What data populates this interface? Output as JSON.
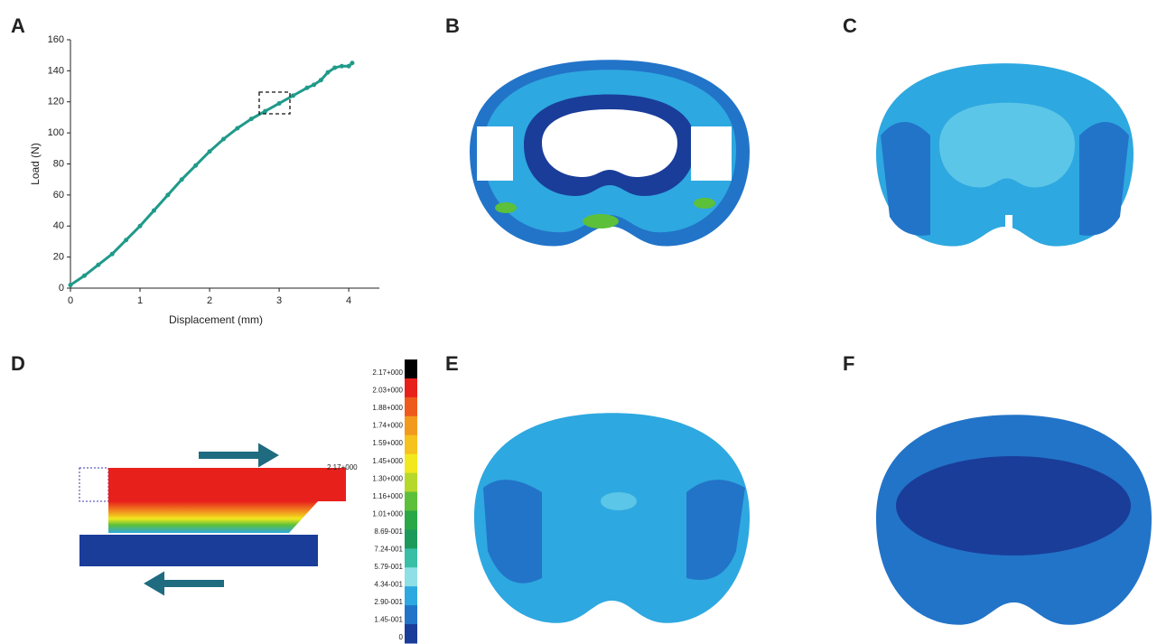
{
  "panel_labels": [
    "A",
    "B",
    "C",
    "D",
    "E",
    "F"
  ],
  "chart_data": {
    "type": "line",
    "x_label": "Displacement (mm)",
    "y_label": "Load (N)",
    "x": [
      0,
      0.2,
      0.4,
      0.6,
      0.8,
      1.0,
      1.2,
      1.4,
      1.6,
      1.8,
      2.0,
      2.2,
      2.4,
      2.6,
      2.8,
      3.0,
      3.2,
      3.4,
      3.5,
      3.6,
      3.7,
      3.8,
      3.9,
      4.0,
      4.05
    ],
    "series": [
      {
        "color": "#1f9a8a",
        "values": [
          2,
          8,
          15,
          22,
          31,
          40,
          50,
          60,
          70,
          79,
          88,
          96,
          103,
          109,
          114,
          119,
          124,
          129,
          131,
          134,
          139,
          142,
          143,
          143,
          145
        ]
      }
    ],
    "xlim": [
      0,
      4.44
    ],
    "ylim": [
      0,
      160
    ],
    "xticks": [
      0,
      1,
      2,
      3,
      4
    ],
    "yticks": [
      0,
      20,
      40,
      60,
      80,
      100,
      120,
      140,
      160
    ]
  },
  "colorbar": {
    "labels": [
      "2.17+000",
      "2.03+000",
      "1.88+000",
      "1.74+000",
      "1.59+000",
      "1.45+000",
      "1.30+000",
      "1.16+000",
      "1.01+000",
      "8.69-001",
      "7.24-001",
      "5.79-001",
      "4.34-001",
      "2.90-001",
      "1.45-001",
      "0"
    ],
    "colors": [
      "#000000",
      "#e8201c",
      "#ee5a1c",
      "#f29a1e",
      "#f6c21e",
      "#f2e81e",
      "#b6d82a",
      "#5cc03a",
      "#2aa848",
      "#1c9a5c",
      "#38bfa6",
      "#8ee0e6",
      "#2ea8e0",
      "#2274c8",
      "#1a3d9a"
    ]
  },
  "model_label": "2.17+000"
}
